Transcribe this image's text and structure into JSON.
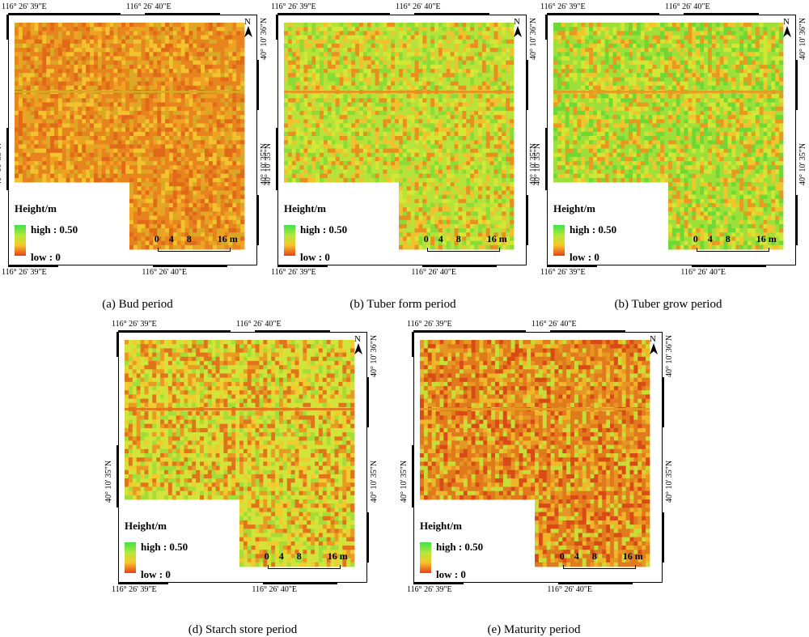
{
  "coords": {
    "top_left": "116°  26' 39\"E",
    "top_mid": "116°  26' 40\"E",
    "bottom_left": "116°  26' 39\"E",
    "bottom_mid": "116°  26' 40\"E",
    "right_top": "40°  10' 36\"N",
    "right_mid": "40°  10' 35\"N",
    "left_mid": "40°  10' 35\"N"
  },
  "legend": {
    "title": "Height/m",
    "high": "high : 0.50",
    "low": "low : 0"
  },
  "scale": {
    "t0": "0",
    "t1": "4",
    "t2": "8",
    "t3": "16 m"
  },
  "north": "N",
  "panels": [
    {
      "caption": "(a) Bud period",
      "palette": [
        "#e8841e",
        "#f0a022",
        "#e06a18",
        "#f3c22e",
        "#d9a825"
      ]
    },
    {
      "caption": "(b) Tuber form period",
      "palette": [
        "#b6e23a",
        "#d6e635",
        "#8cdc38",
        "#f1c22e",
        "#e8901f"
      ]
    },
    {
      "caption": "(b) Tuber grow period",
      "palette": [
        "#9ee03a",
        "#6ed836",
        "#d2e634",
        "#f0c62d",
        "#e89a20"
      ]
    },
    {
      "caption": "(d) Starch store period",
      "palette": [
        "#d2e33a",
        "#f2cc2e",
        "#e99a22",
        "#a4dd38",
        "#e0741a"
      ]
    },
    {
      "caption": "(e) Maturity period",
      "palette": [
        "#e07a1c",
        "#d94a16",
        "#f0b62a",
        "#c8dd38",
        "#e69622"
      ]
    }
  ]
}
